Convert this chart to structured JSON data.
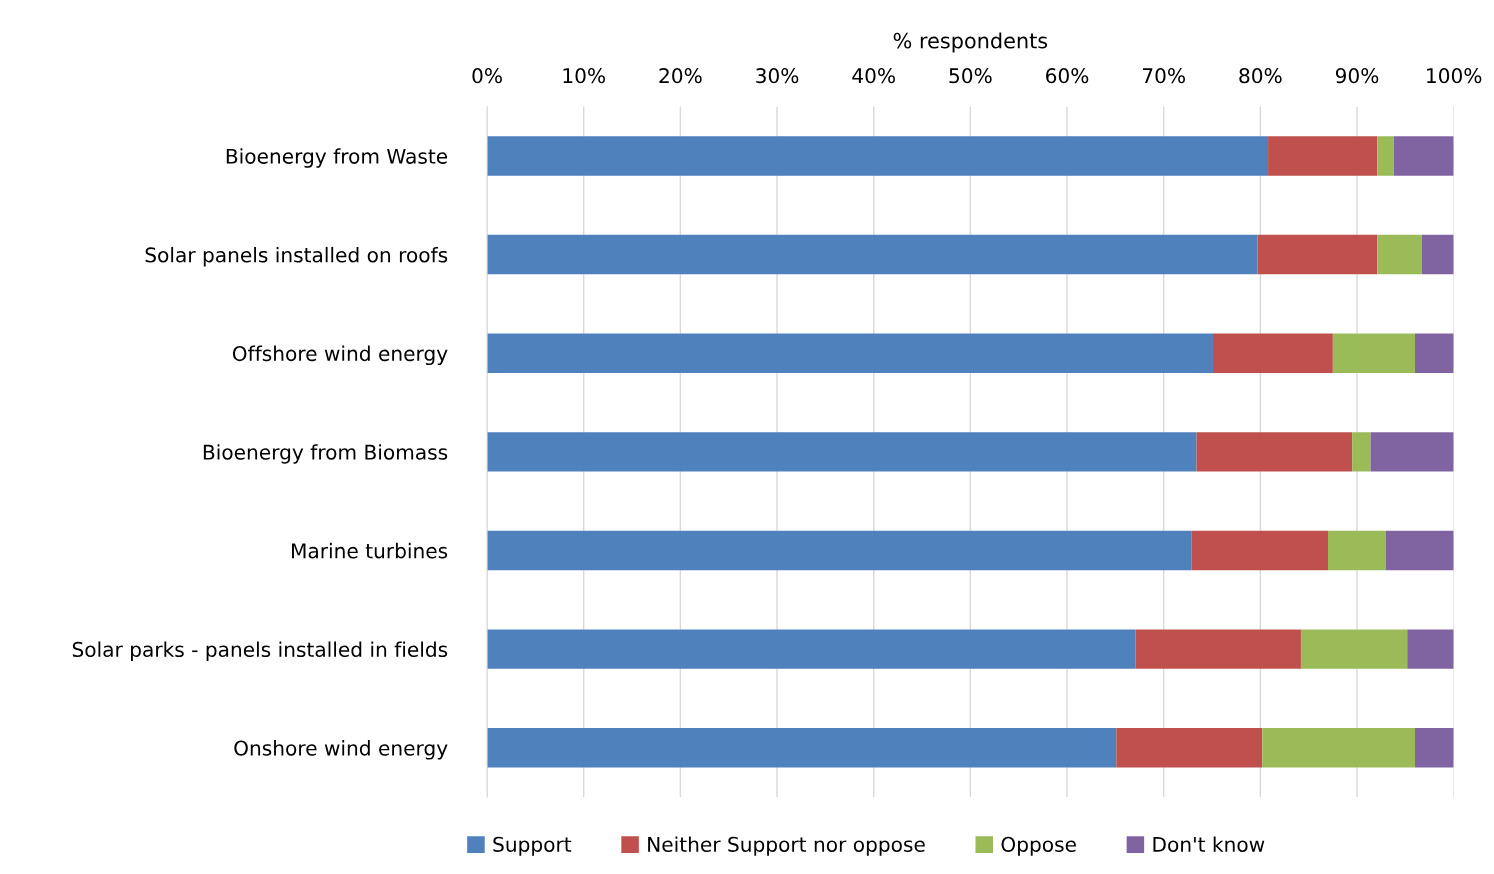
{
  "chart_data": {
    "type": "bar",
    "orientation": "horizontal",
    "stacked": true,
    "xlabel": "% respondents",
    "categories": [
      "Bioenergy from Waste",
      "Solar panels installed on roofs",
      "Offshore wind energy",
      "Bioenergy from Biomass",
      "Marine turbines",
      "Solar parks - panels installed in fields",
      "Onshore wind energy"
    ],
    "series": [
      {
        "name": "Support",
        "color": "#4f81bd",
        "values": [
          80.8,
          79.7,
          75.1,
          73.4,
          72.9,
          67.1,
          65.1
        ]
      },
      {
        "name": "Neither Support nor oppose",
        "color": "#c0504d",
        "values": [
          11.3,
          12.4,
          12.4,
          16.1,
          14.1,
          17.1,
          15.1
        ]
      },
      {
        "name": "Oppose",
        "color": "#9bbb59",
        "values": [
          1.7,
          4.6,
          8.5,
          1.9,
          6.0,
          11.0,
          15.8
        ]
      },
      {
        "name": "Don't know",
        "color": "#8064a2",
        "values": [
          6.2,
          3.3,
          4.0,
          8.6,
          7.0,
          4.8,
          4.0
        ]
      }
    ],
    "xlim": [
      0,
      100
    ],
    "xticks": [
      {
        "value": 0,
        "label": "0%"
      },
      {
        "value": 10,
        "label": "10%"
      },
      {
        "value": 20,
        "label": "20%"
      },
      {
        "value": 30,
        "label": "30%"
      },
      {
        "value": 40,
        "label": "40%"
      },
      {
        "value": 50,
        "label": "50%"
      },
      {
        "value": 60,
        "label": "60%"
      },
      {
        "value": 70,
        "label": "70%"
      },
      {
        "value": 80,
        "label": "80%"
      },
      {
        "value": 90,
        "label": "90%"
      },
      {
        "value": 100,
        "label": "100%"
      }
    ],
    "grid": "x",
    "legend": "bottom"
  }
}
